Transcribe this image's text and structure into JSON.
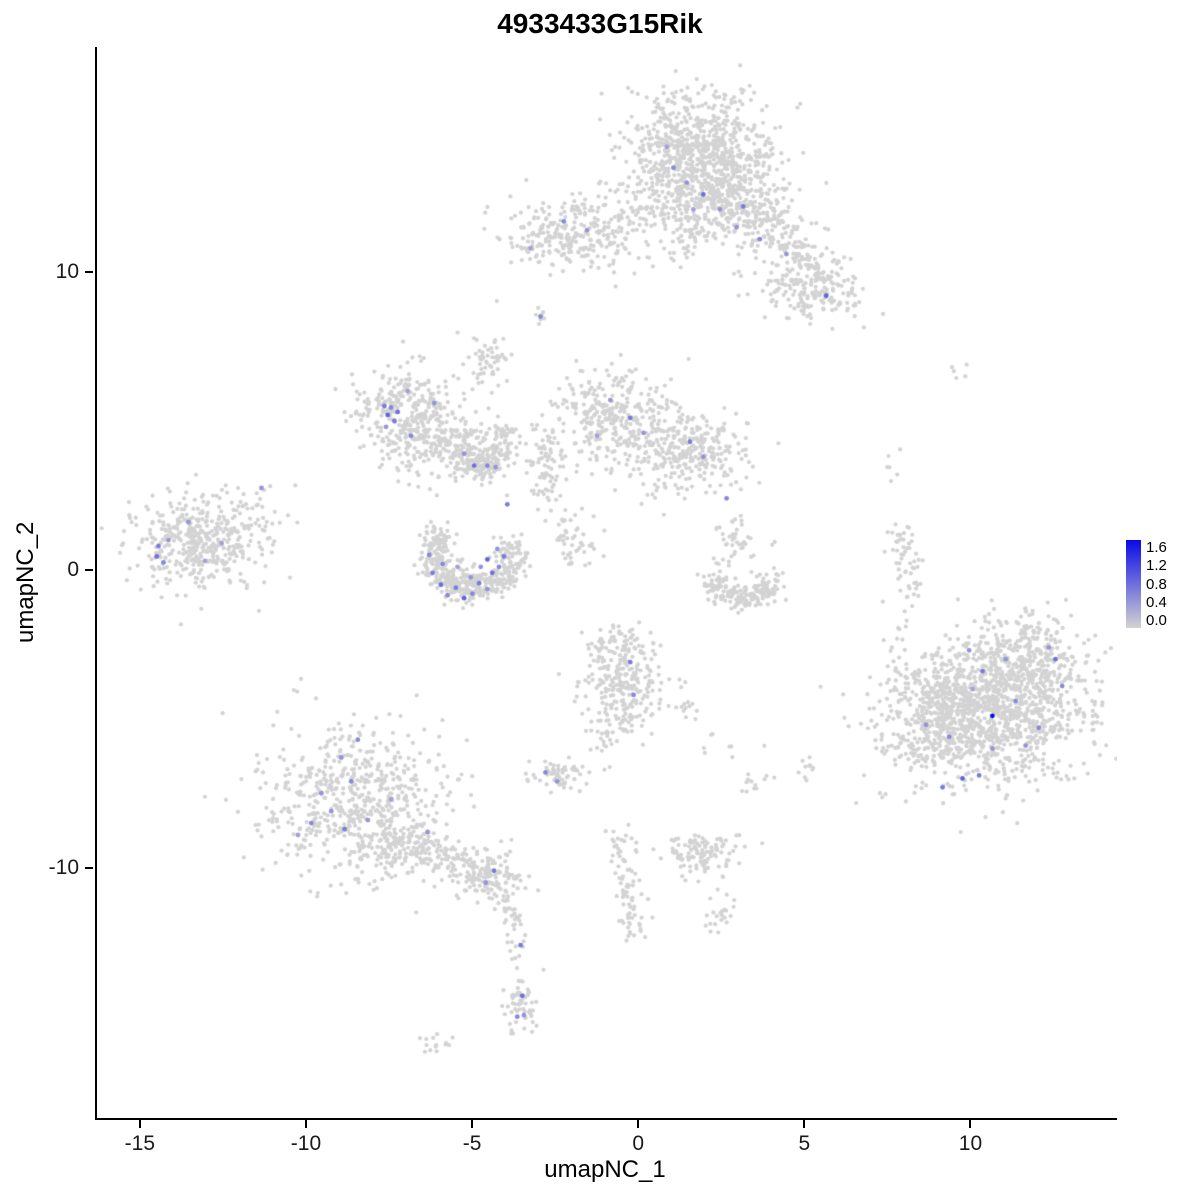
{
  "chart_data": {
    "type": "scatter",
    "title": "4933433G15Rik",
    "xlabel": "umapNC_1",
    "ylabel": "umapNC_2",
    "xlim": [
      -16.35,
      14.35
    ],
    "ylim": [
      -18.4,
      17.55
    ],
    "x_ticks": [
      -15,
      -10,
      -5,
      0,
      5,
      10
    ],
    "y_ticks": [
      10,
      0,
      -10
    ],
    "grid": false,
    "point_grey": "#D3D3D3",
    "point_high": "#0A0AE6",
    "point_radius": 2.1,
    "legend": {
      "position": "right",
      "tick_labels": [
        "1.6",
        "1.2",
        "0.8",
        "0.4",
        "0.0"
      ],
      "vmin": 0.0,
      "vmax": 1.6,
      "low_color": "#D3D3D3",
      "high_color": "#0A0AE6"
    },
    "clusters": [
      {
        "type": "blob",
        "n": 850,
        "cx": 1.7,
        "cy": 13.9,
        "sx": 1.15,
        "sy": 1.05
      },
      {
        "type": "blob",
        "n": 220,
        "cx": 2.7,
        "cy": 12.3,
        "sx": 0.8,
        "sy": 0.6
      },
      {
        "type": "strand",
        "n": 220,
        "x1": 3.0,
        "y1": 12.4,
        "x2": 5.3,
        "y2": 9.8,
        "w": 0.55
      },
      {
        "type": "blob",
        "n": 160,
        "cx": 5.1,
        "cy": 9.4,
        "sx": 0.75,
        "sy": 0.55
      },
      {
        "type": "strand",
        "n": 60,
        "x1": 1.3,
        "y1": 12.2,
        "x2": 1.5,
        "y2": 10.8,
        "w": 0.35
      },
      {
        "type": "blob",
        "n": 280,
        "cx": -2.0,
        "cy": 11.3,
        "sx": 1.05,
        "sy": 0.6
      },
      {
        "type": "strand",
        "n": 45,
        "x1": -0.8,
        "y1": 11.6,
        "x2": 0.6,
        "y2": 12.3,
        "w": 0.4
      },
      {
        "type": "blob",
        "n": 12,
        "cx": -3.3,
        "cy": 10.7,
        "sx": 0.3,
        "sy": 0.25
      },
      {
        "type": "blob",
        "n": 8,
        "cx": -3.0,
        "cy": 8.45,
        "sx": 0.18,
        "sy": 0.18
      },
      {
        "type": "blob",
        "n": 55,
        "cx": -4.55,
        "cy": 7.1,
        "sx": 0.3,
        "sy": 0.5
      },
      {
        "type": "blob",
        "n": 300,
        "cx": -7.1,
        "cy": 5.3,
        "sx": 0.75,
        "sy": 0.75,
        "hole": 0.3
      },
      {
        "type": "blob",
        "n": 210,
        "cx": -5.7,
        "cy": 4.2,
        "sx": 0.75,
        "sy": 0.55
      },
      {
        "type": "arc",
        "n": 90,
        "cx": -5.2,
        "cy": 4.6,
        "r": 1.1,
        "a0": -1.6,
        "a1": 0.2,
        "w": 0.25
      },
      {
        "type": "strand",
        "n": 70,
        "x1": -5.2,
        "y1": 3.5,
        "x2": -4.4,
        "y2": 3.4,
        "w": 0.3
      },
      {
        "type": "blob",
        "n": 330,
        "cx": -0.8,
        "cy": 5.1,
        "sx": 0.85,
        "sy": 0.8
      },
      {
        "type": "blob",
        "n": 300,
        "cx": 1.4,
        "cy": 4.0,
        "sx": 0.95,
        "sy": 0.65
      },
      {
        "type": "strand",
        "n": 80,
        "x1": -2.7,
        "y1": 4.5,
        "x2": -2.9,
        "y2": 2.4,
        "w": 0.3
      },
      {
        "type": "strand",
        "n": 50,
        "x1": -2.3,
        "y1": 2.0,
        "x2": -1.7,
        "y2": 0.3,
        "w": 0.35
      },
      {
        "type": "blob",
        "n": 420,
        "cx": -13.3,
        "cy": 1.0,
        "sx": 0.95,
        "sy": 0.8
      },
      {
        "type": "blob",
        "n": 30,
        "cx": -11.6,
        "cy": 1.7,
        "sx": 0.5,
        "sy": 0.6
      },
      {
        "type": "arc",
        "n": 420,
        "cx": -5.0,
        "cy": 0.55,
        "r": 1.15,
        "a0": 2.5,
        "a1": 6.6,
        "w": 0.28
      },
      {
        "type": "blob",
        "n": 60,
        "cx": -5.4,
        "cy": -0.4,
        "sx": 0.5,
        "sy": 0.35
      },
      {
        "type": "blob",
        "n": 40,
        "cx": 3.0,
        "cy": 1.0,
        "sx": 0.3,
        "sy": 0.45
      },
      {
        "type": "arc",
        "n": 190,
        "cx": 3.1,
        "cy": 0.0,
        "r": 0.95,
        "a0": 3.3,
        "a1": 6.1,
        "w": 0.25
      },
      {
        "type": "strand",
        "n": 55,
        "x1": 7.9,
        "y1": 1.4,
        "x2": 8.1,
        "y2": -0.9,
        "w": 0.22
      },
      {
        "type": "blob",
        "n": 6,
        "cx": 7.6,
        "cy": 3.6,
        "sx": 0.2,
        "sy": 0.3
      },
      {
        "type": "blob",
        "n": 5,
        "cx": 9.5,
        "cy": 6.7,
        "sx": 0.3,
        "sy": 0.15
      },
      {
        "type": "blob",
        "n": 4,
        "cx": 7.7,
        "cy": -2.2,
        "sx": 0.25,
        "sy": 0.3
      },
      {
        "type": "blob",
        "n": 1300,
        "cx": 10.4,
        "cy": -4.7,
        "sx": 1.45,
        "sy": 1.2
      },
      {
        "type": "blob",
        "n": 260,
        "cx": 11.7,
        "cy": -3.0,
        "sx": 0.9,
        "sy": 0.7
      },
      {
        "type": "blob",
        "n": 160,
        "cx": 8.9,
        "cy": -5.4,
        "sx": 0.8,
        "sy": 0.8
      },
      {
        "type": "blob",
        "n": 250,
        "cx": -0.5,
        "cy": -3.7,
        "sx": 0.6,
        "sy": 0.85
      },
      {
        "type": "blob",
        "n": 40,
        "cx": -0.9,
        "cy": -2.4,
        "sx": 0.5,
        "sy": 0.3
      },
      {
        "type": "strand",
        "n": 25,
        "x1": -0.9,
        "y1": -5.0,
        "x2": -1.1,
        "y2": -5.9,
        "w": 0.3
      },
      {
        "type": "blob",
        "n": 15,
        "cx": 1.2,
        "cy": -4.6,
        "sx": 0.3,
        "sy": 0.4
      },
      {
        "type": "blob",
        "n": 60,
        "cx": -2.55,
        "cy": -6.95,
        "sx": 0.42,
        "sy": 0.3
      },
      {
        "type": "blob",
        "n": 620,
        "cx": -8.6,
        "cy": -7.8,
        "sx": 1.35,
        "sy": 1.25
      },
      {
        "type": "blob",
        "n": 120,
        "cx": -7.3,
        "cy": -9.2,
        "sx": 0.7,
        "sy": 0.5
      },
      {
        "type": "strand",
        "n": 110,
        "x1": -6.6,
        "y1": -9.4,
        "x2": -4.8,
        "y2": -10.1,
        "w": 0.35
      },
      {
        "type": "blob",
        "n": 110,
        "cx": -4.4,
        "cy": -10.3,
        "sx": 0.45,
        "sy": 0.4
      },
      {
        "type": "strand",
        "n": 40,
        "x1": -4.0,
        "y1": -10.9,
        "x2": -3.7,
        "y2": -12.9,
        "w": 0.18
      },
      {
        "type": "blob",
        "n": 60,
        "cx": -3.6,
        "cy": -14.6,
        "sx": 0.25,
        "sy": 0.5
      },
      {
        "type": "blob",
        "n": 14,
        "cx": -6.1,
        "cy": -15.9,
        "sx": 0.3,
        "sy": 0.2
      },
      {
        "type": "strand",
        "n": 85,
        "x1": -0.6,
        "y1": -8.7,
        "x2": -0.2,
        "y2": -12.3,
        "w": 0.22
      },
      {
        "type": "blob",
        "n": 110,
        "cx": 1.9,
        "cy": -9.5,
        "sx": 0.55,
        "sy": 0.38
      },
      {
        "type": "blob",
        "n": 22,
        "cx": 2.4,
        "cy": -11.6,
        "sx": 0.22,
        "sy": 0.45
      },
      {
        "type": "blob",
        "n": 12,
        "cx": 3.3,
        "cy": -7.1,
        "sx": 0.3,
        "sy": 0.2
      },
      {
        "type": "blob",
        "n": 10,
        "cx": 5.0,
        "cy": -6.7,
        "sx": 0.25,
        "sy": 0.3
      },
      {
        "type": "blob",
        "n": 8,
        "cx": 2.2,
        "cy": -5.9,
        "sx": 0.5,
        "sy": 0.3
      },
      {
        "type": "blob",
        "n": 6,
        "cx": -1.6,
        "cy": -6.7,
        "sx": 0.4,
        "sy": 0.3
      }
    ],
    "expressed_points": [
      [
        0.8,
        14.2,
        0.4
      ],
      [
        1.0,
        13.5,
        0.6
      ],
      [
        1.4,
        13.0,
        0.5
      ],
      [
        1.9,
        12.6,
        0.8
      ],
      [
        1.6,
        12.1,
        0.4
      ],
      [
        2.4,
        12.1,
        0.5
      ],
      [
        3.1,
        12.2,
        0.7
      ],
      [
        2.9,
        11.5,
        0.5
      ],
      [
        3.6,
        11.1,
        0.6
      ],
      [
        4.4,
        10.6,
        0.5
      ],
      [
        5.6,
        9.2,
        0.9
      ],
      [
        -2.3,
        11.7,
        0.6
      ],
      [
        -1.6,
        11.4,
        0.5
      ],
      [
        -3.3,
        10.8,
        0.4
      ],
      [
        -3.0,
        8.5,
        0.6
      ],
      [
        -7.7,
        5.5,
        0.7
      ],
      [
        -7.6,
        5.2,
        0.9
      ],
      [
        -7.5,
        5.45,
        0.6
      ],
      [
        -7.4,
        5.0,
        0.7
      ],
      [
        -7.65,
        4.8,
        0.5
      ],
      [
        -7.3,
        5.3,
        0.8
      ],
      [
        -7.0,
        6.0,
        0.4
      ],
      [
        -6.2,
        5.6,
        0.5
      ],
      [
        -6.9,
        4.5,
        0.6
      ],
      [
        -5.3,
        3.9,
        0.5
      ],
      [
        -5.0,
        3.5,
        0.8
      ],
      [
        -4.6,
        3.5,
        0.6
      ],
      [
        -4.35,
        3.45,
        0.5
      ],
      [
        -0.9,
        5.7,
        0.5
      ],
      [
        -0.3,
        5.1,
        0.7
      ],
      [
        0.1,
        4.6,
        0.5
      ],
      [
        1.5,
        4.3,
        0.7
      ],
      [
        1.9,
        3.8,
        0.5
      ],
      [
        -1.3,
        4.5,
        0.4
      ],
      [
        2.6,
        2.4,
        0.6
      ],
      [
        -14.5,
        0.8,
        0.7
      ],
      [
        -14.55,
        0.45,
        0.8
      ],
      [
        -14.35,
        0.25,
        0.6
      ],
      [
        -14.2,
        1.0,
        0.5
      ],
      [
        -13.6,
        1.6,
        0.5
      ],
      [
        -12.6,
        0.9,
        0.4
      ],
      [
        -11.4,
        2.75,
        0.5
      ],
      [
        -13.1,
        0.3,
        0.4
      ],
      [
        -6.35,
        0.5,
        0.6
      ],
      [
        -6.25,
        -0.1,
        0.7
      ],
      [
        -6.0,
        -0.5,
        0.8
      ],
      [
        -5.8,
        -0.85,
        0.6
      ],
      [
        -5.55,
        -0.6,
        0.7
      ],
      [
        -5.3,
        -0.95,
        0.9
      ],
      [
        -5.05,
        -0.8,
        0.6
      ],
      [
        -4.85,
        -0.45,
        0.7
      ],
      [
        -4.6,
        -0.65,
        0.5
      ],
      [
        -4.45,
        -0.1,
        0.8
      ],
      [
        -4.25,
        0.1,
        0.6
      ],
      [
        -4.1,
        0.45,
        0.7
      ],
      [
        -4.3,
        0.7,
        0.5
      ],
      [
        -4.6,
        0.35,
        0.9
      ],
      [
        -5.1,
        -0.25,
        0.5
      ],
      [
        -5.95,
        0.2,
        0.6
      ],
      [
        -5.5,
        0.1,
        0.4
      ],
      [
        -4.8,
        0.1,
        0.5
      ],
      [
        -4.0,
        2.2,
        0.7
      ],
      [
        8.6,
        -5.2,
        0.5
      ],
      [
        9.1,
        -7.3,
        0.7
      ],
      [
        9.7,
        -7.0,
        0.9
      ],
      [
        10.2,
        -6.9,
        0.7
      ],
      [
        10.6,
        -6.0,
        0.5
      ],
      [
        9.3,
        -5.6,
        0.6
      ],
      [
        10.6,
        -4.9,
        1.6
      ],
      [
        11.3,
        -4.4,
        0.6
      ],
      [
        12.5,
        -3.0,
        0.8
      ],
      [
        12.3,
        -2.6,
        0.5
      ],
      [
        10.3,
        -3.4,
        0.7
      ],
      [
        9.9,
        -2.7,
        0.5
      ],
      [
        12.0,
        -5.3,
        0.6
      ],
      [
        11.6,
        -5.9,
        0.5
      ],
      [
        10.0,
        -4.0,
        0.4
      ],
      [
        11.0,
        -3.0,
        0.5
      ],
      [
        12.7,
        -3.9,
        0.6
      ],
      [
        -0.3,
        -3.1,
        0.7
      ],
      [
        -0.2,
        -4.2,
        0.6
      ],
      [
        -2.85,
        -6.8,
        0.6
      ],
      [
        -2.5,
        -7.1,
        0.5
      ],
      [
        -9.9,
        -8.5,
        0.6
      ],
      [
        -9.3,
        -8.1,
        0.5
      ],
      [
        -8.9,
        -8.7,
        0.7
      ],
      [
        -8.2,
        -8.4,
        0.5
      ],
      [
        -8.7,
        -7.1,
        0.6
      ],
      [
        -9.0,
        -6.3,
        0.5
      ],
      [
        -8.5,
        -5.7,
        0.6
      ],
      [
        -7.5,
        -7.7,
        0.4
      ],
      [
        -6.4,
        -8.8,
        0.5
      ],
      [
        -9.6,
        -7.5,
        0.5
      ],
      [
        -10.3,
        -8.9,
        0.4
      ],
      [
        -4.4,
        -10.1,
        0.7
      ],
      [
        -4.65,
        -10.5,
        0.5
      ],
      [
        -3.6,
        -12.6,
        0.7
      ],
      [
        -3.55,
        -14.3,
        0.8
      ],
      [
        -3.7,
        -15.0,
        0.6
      ],
      [
        -3.5,
        -14.95,
        0.5
      ]
    ]
  }
}
